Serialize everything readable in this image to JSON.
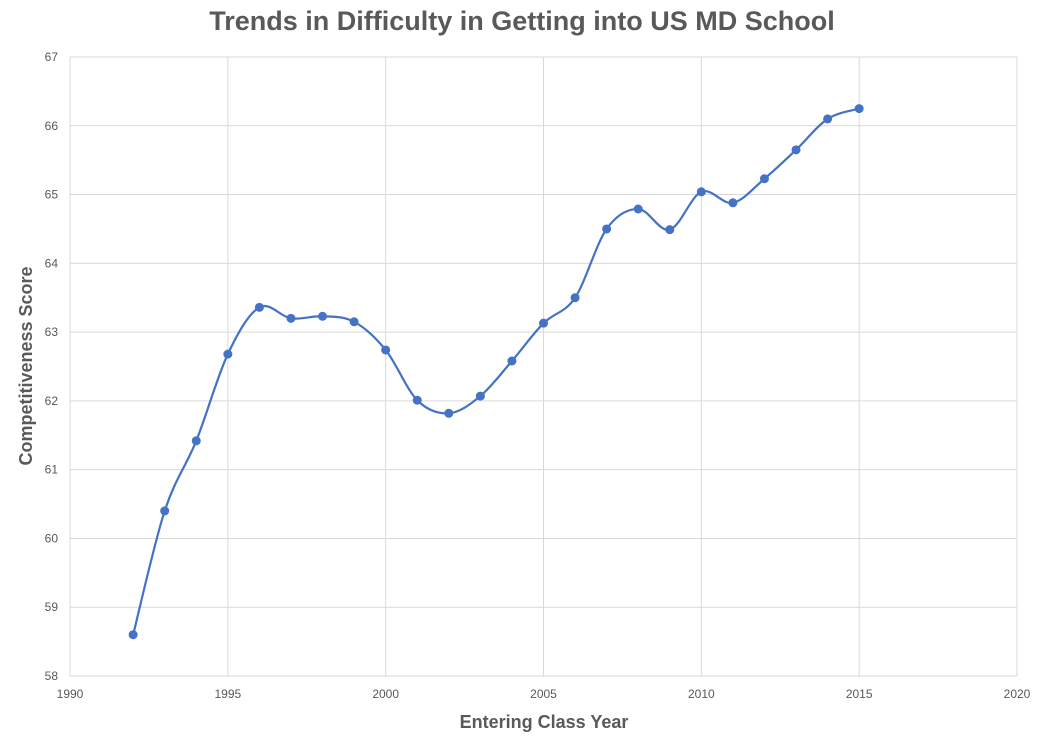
{
  "chart_data": {
    "type": "scatter",
    "mode": "smooth-line-with-markers",
    "title": "Trends in Difficulty in Getting into US MD School",
    "xlabel": "Entering Class Year",
    "ylabel": "Competitiveness Score",
    "xlim": [
      1990,
      2020
    ],
    "ylim": [
      58,
      67
    ],
    "x_ticks": [
      1990,
      1995,
      2000,
      2005,
      2010,
      2015,
      2020
    ],
    "y_ticks": [
      58,
      59,
      60,
      61,
      62,
      63,
      64,
      65,
      66,
      67
    ],
    "grid": true,
    "legend": "none",
    "series": [
      {
        "color": "#4472c4",
        "x": [
          1992,
          1993,
          1994,
          1995,
          1996,
          1997,
          1998,
          1999,
          2000,
          2001,
          2002,
          2003,
          2004,
          2005,
          2006,
          2007,
          2008,
          2009,
          2010,
          2011,
          2012,
          2013,
          2014,
          2015
        ],
        "y": [
          58.6,
          60.4,
          61.42,
          62.68,
          63.36,
          63.2,
          63.23,
          63.15,
          62.74,
          62.01,
          61.82,
          62.07,
          62.58,
          63.13,
          63.5,
          64.5,
          64.79,
          64.49,
          65.04,
          64.88,
          65.23,
          65.65,
          66.1,
          66.25
        ]
      }
    ]
  }
}
